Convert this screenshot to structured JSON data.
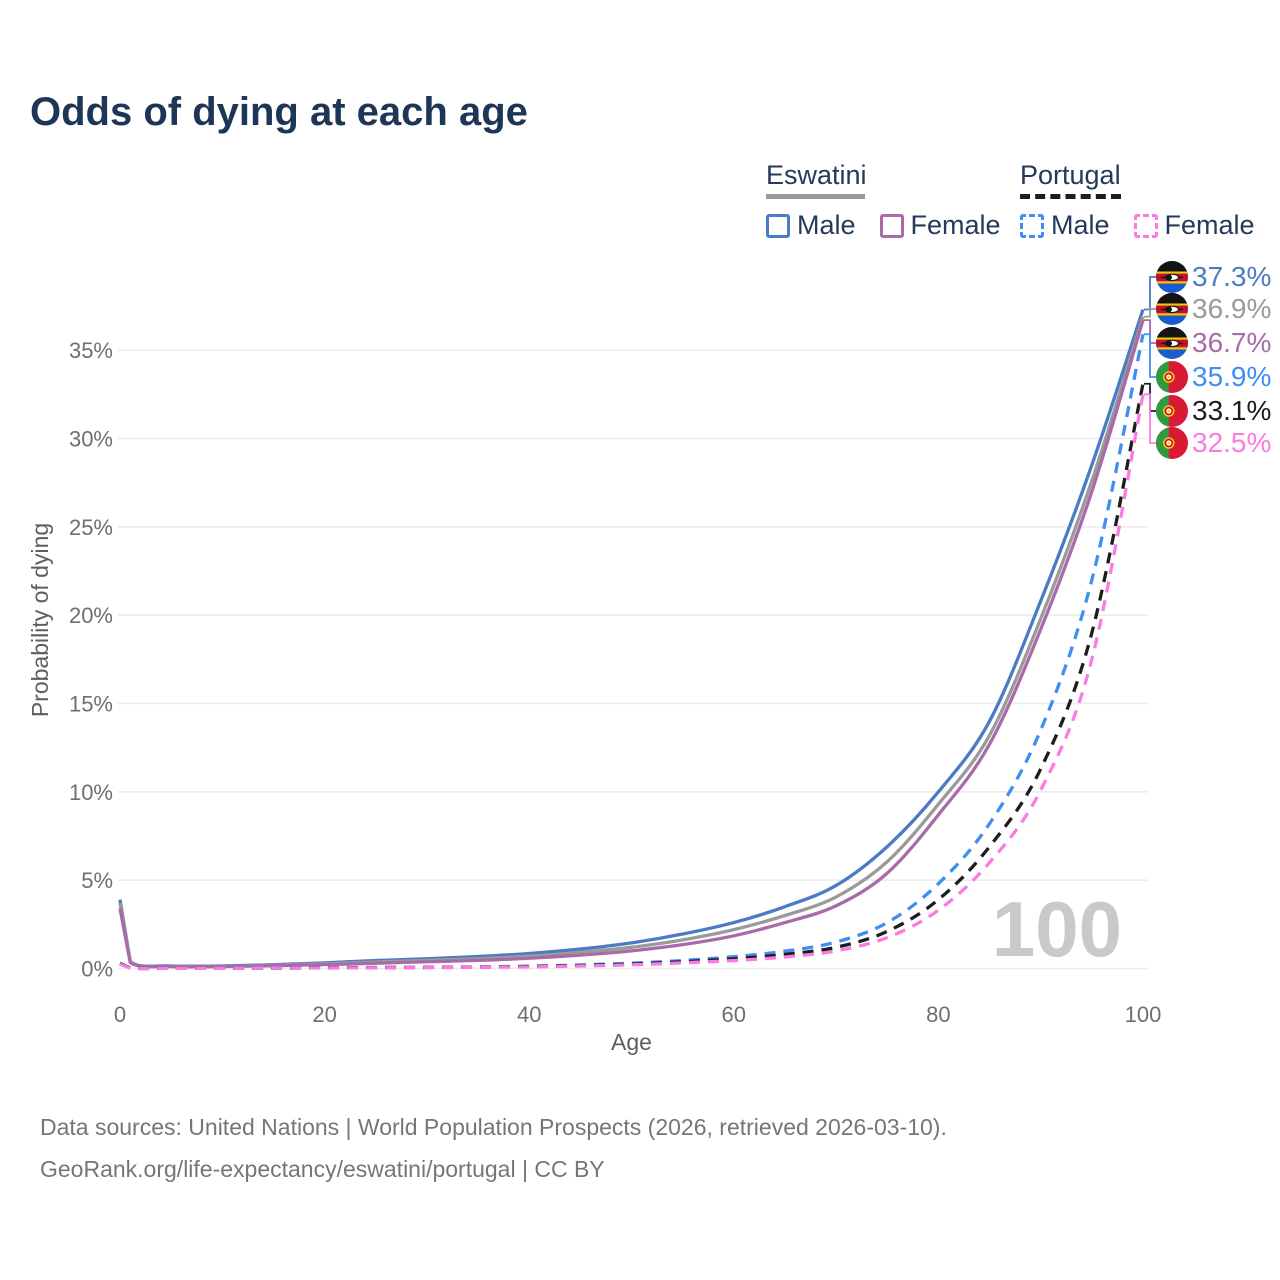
{
  "title": "Odds of dying at each age",
  "legend": {
    "groups": [
      {
        "label": "Eswatini",
        "line_style": "solid",
        "items": [
          {
            "label": "Male",
            "color": "#4a7bc4"
          },
          {
            "label": "Female",
            "color": "#a86ba8"
          }
        ]
      },
      {
        "label": "Portugal",
        "line_style": "dashed",
        "items": [
          {
            "label": "Male",
            "color": "#3f8ef3"
          },
          {
            "label": "Female",
            "color": "#fb7be0"
          }
        ]
      }
    ]
  },
  "chart_data": {
    "type": "line",
    "title": "Odds of dying at each age",
    "xlabel": "Age",
    "ylabel": "Probability of dying",
    "x_ticks": [
      0,
      20,
      40,
      60,
      80,
      100
    ],
    "y_ticks": [
      "0%",
      "5%",
      "10%",
      "15%",
      "20%",
      "25%",
      "30%",
      "35%"
    ],
    "xlim": [
      0,
      100
    ],
    "ylim": [
      0,
      37.5
    ],
    "grid": "horizontal",
    "watermark": "100",
    "x": [
      0,
      1,
      5,
      10,
      15,
      20,
      25,
      30,
      35,
      40,
      45,
      50,
      55,
      60,
      65,
      70,
      75,
      80,
      85,
      90,
      95,
      100
    ],
    "series": [
      {
        "name": "Eswatini Male",
        "country": "Eswatini",
        "flag": "eswatini",
        "color": "#4a7bc4",
        "dashed": false,
        "end_label": "37.3%",
        "values": [
          3.9,
          0.4,
          0.15,
          0.15,
          0.22,
          0.32,
          0.45,
          0.55,
          0.68,
          0.85,
          1.1,
          1.45,
          1.95,
          2.6,
          3.5,
          4.7,
          6.9,
          10.0,
          14.0,
          20.8,
          28.5,
          37.3
        ]
      },
      {
        "name": "Eswatini Both sexes",
        "country": "Eswatini",
        "flag": "eswatini",
        "color": "#9a9a9a",
        "dashed": false,
        "end_label": "36.9%",
        "values": [
          3.7,
          0.37,
          0.13,
          0.13,
          0.19,
          0.27,
          0.37,
          0.46,
          0.56,
          0.7,
          0.92,
          1.2,
          1.62,
          2.2,
          3.0,
          4.05,
          6.05,
          9.3,
          13.2,
          19.8,
          27.6,
          36.9
        ]
      },
      {
        "name": "Eswatini Female",
        "country": "Eswatini",
        "flag": "eswatini",
        "color": "#a86ba8",
        "dashed": false,
        "end_label": "36.7%",
        "values": [
          3.4,
          0.34,
          0.11,
          0.11,
          0.16,
          0.22,
          0.3,
          0.38,
          0.46,
          0.58,
          0.76,
          1.0,
          1.35,
          1.85,
          2.6,
          3.55,
          5.4,
          8.7,
          12.7,
          19.2,
          27.0,
          36.7
        ]
      },
      {
        "name": "Portugal Male",
        "country": "Portugal",
        "flag": "portugal",
        "color": "#3f8ef3",
        "dashed": true,
        "end_label": "35.9%",
        "values": [
          0.3,
          0.03,
          0.01,
          0.01,
          0.03,
          0.05,
          0.06,
          0.07,
          0.09,
          0.13,
          0.2,
          0.3,
          0.45,
          0.67,
          0.98,
          1.5,
          2.6,
          4.8,
          8.2,
          13.5,
          22.0,
          35.9
        ]
      },
      {
        "name": "Portugal Both sexes",
        "country": "Portugal",
        "flag": "portugal",
        "color": "#1d1d1d",
        "dashed": true,
        "end_label": "33.1%",
        "values": [
          0.28,
          0.03,
          0.01,
          0.01,
          0.02,
          0.04,
          0.05,
          0.06,
          0.08,
          0.11,
          0.17,
          0.25,
          0.38,
          0.55,
          0.8,
          1.2,
          2.1,
          3.9,
          6.9,
          11.3,
          19.0,
          33.1
        ]
      },
      {
        "name": "Portugal Female",
        "country": "Portugal",
        "flag": "portugal",
        "color": "#fb7be0",
        "dashed": true,
        "end_label": "32.5%",
        "values": [
          0.25,
          0.02,
          0.01,
          0.01,
          0.02,
          0.03,
          0.04,
          0.05,
          0.07,
          0.09,
          0.14,
          0.21,
          0.32,
          0.45,
          0.65,
          1.0,
          1.75,
          3.3,
          6.0,
          10.1,
          17.5,
          32.5
        ]
      }
    ],
    "legend_position": "top-right"
  },
  "footer": {
    "line1": "Data sources: United Nations | World Population Prospects (2026, retrieved 2026-03-10).",
    "line2": "GeoRank.org/life-expectancy/eswatini/portugal | CC BY"
  },
  "colors": {
    "title_text": "#1d3557",
    "axis_text": "#6f6f6f",
    "gridline": "#ececec",
    "watermark": "#c9c9c9",
    "footer_text": "#767676"
  }
}
